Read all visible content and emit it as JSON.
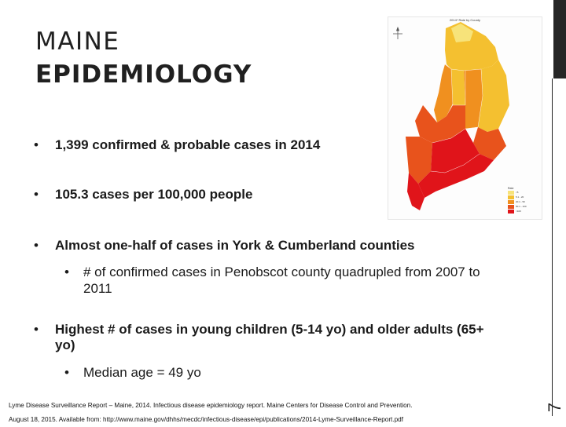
{
  "title": {
    "line1": "MAINE",
    "line2": "EPIDEMIOLOGY"
  },
  "bullets": [
    {
      "text": "1,399 confirmed & probable cases in 2014"
    },
    {
      "text": "105.3 cases per 100,000 people"
    },
    {
      "text": "Almost one-half of cases in York & Cumberland counties"
    },
    {
      "text": "Highest  # of cases in young children (5-14 yo) and older adults (65+ yo)"
    }
  ],
  "sub_bullets": [
    {
      "text": "# of confirmed cases in Penobscot county quadrupled from 2007 to 2011"
    },
    {
      "text": "Median age = 49 yo"
    }
  ],
  "bullet_glyph": "•",
  "map": {
    "title": "2014* Rate by County",
    "legend_title": "Rate",
    "legend": [
      {
        "label": "<5",
        "color": "#f7e37a"
      },
      {
        "label": "5.1 - 20",
        "color": "#f4c030"
      },
      {
        "label": "20.1 - 50",
        "color": "#f0901f"
      },
      {
        "label": "50.1 - 100",
        "color": "#e8531c"
      },
      {
        "label": ">100",
        "color": "#e0141a"
      }
    ]
  },
  "footer": {
    "line1": "Lyme Disease Surveillance Report – Maine, 2014.  Infectious disease epidemiology report. Maine Centers for Disease Control and Prevention.",
    "line2": "August 18, 2015.  Available from: http://www.maine.gov/dhhs/mecdc/infectious-disease/epi/publications/2014-Lyme-Surveillance-Report.pdf"
  },
  "page_number": "7",
  "colors": {
    "sidebar": "#262626",
    "text": "#1a1a1a"
  }
}
